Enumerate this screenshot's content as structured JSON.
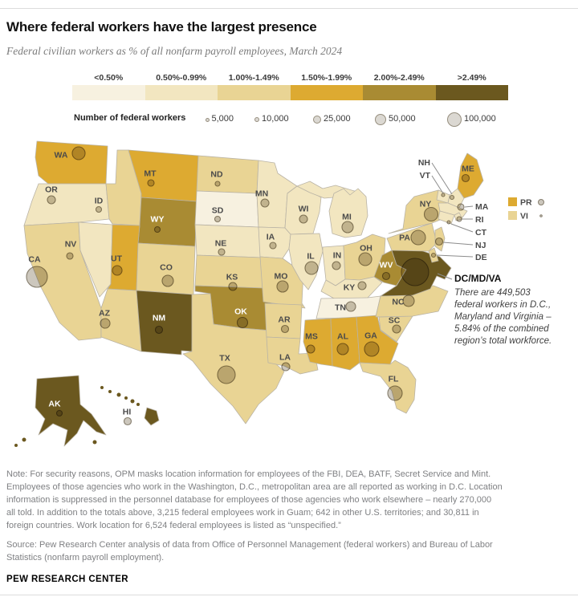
{
  "header": {
    "title": "Where federal workers have the largest presence",
    "subtitle": "Federal civilian workers as % of all nonfarm payroll employees, March 2024"
  },
  "legend": {
    "bins": [
      {
        "label": "<0.50%",
        "color": "#f7f1e0"
      },
      {
        "label": "0.50%-0.99%",
        "color": "#f2e6c0"
      },
      {
        "label": "1.00%-1.49%",
        "color": "#e9d494"
      },
      {
        "label": "1.50%-1.99%",
        "color": "#ddaa31"
      },
      {
        "label": "2.00%-2.49%",
        "color": "#a98b33"
      },
      {
        "label": ">2.49%",
        "color": "#6b581f"
      }
    ],
    "size_title": "Number of federal workers",
    "sizes": [
      "5,000",
      "10,000",
      "25,000",
      "50,000",
      "100,000"
    ]
  },
  "chart_data": {
    "type": "choropleth-bubble-map",
    "title": "Where federal workers have the largest presence",
    "subtitle": "Federal civilian workers as % of all nonfarm payroll employees, March 2024",
    "bin_labels": [
      "<0.50%",
      "0.50%-0.99%",
      "1.00%-1.49%",
      "1.50%-1.99%",
      "2.00%-2.49%",
      ">2.49%"
    ],
    "bubble_legend_values": [
      "5,000",
      "10,000",
      "25,000",
      "50,000",
      "100,000"
    ],
    "states": [
      {
        "key": "WA",
        "bin": 3
      },
      {
        "key": "OR",
        "bin": 1
      },
      {
        "key": "CA",
        "bin": 2
      },
      {
        "key": "NV",
        "bin": 1
      },
      {
        "key": "ID",
        "bin": 2
      },
      {
        "key": "MT",
        "bin": 3
      },
      {
        "key": "WY",
        "bin": 4
      },
      {
        "key": "UT",
        "bin": 3
      },
      {
        "key": "CO",
        "bin": 2
      },
      {
        "key": "AZ",
        "bin": 2
      },
      {
        "key": "NM",
        "bin": 5
      },
      {
        "key": "ND",
        "bin": 2
      },
      {
        "key": "SD",
        "bin": 0
      },
      {
        "key": "NE",
        "bin": 1
      },
      {
        "key": "KS",
        "bin": 2
      },
      {
        "key": "OK",
        "bin": 4
      },
      {
        "key": "TX",
        "bin": 2
      },
      {
        "key": "MN",
        "bin": 1
      },
      {
        "key": "IA",
        "bin": 1
      },
      {
        "key": "MO",
        "bin": 2
      },
      {
        "key": "AR",
        "bin": 2
      },
      {
        "key": "LA",
        "bin": 2
      },
      {
        "key": "WI",
        "bin": 1
      },
      {
        "key": "IL",
        "bin": 1
      },
      {
        "key": "MIU",
        "bin": 1
      },
      {
        "key": "MI",
        "bin": 1
      },
      {
        "key": "IN",
        "bin": 1
      },
      {
        "key": "OH",
        "bin": 2
      },
      {
        "key": "KY",
        "bin": 1
      },
      {
        "key": "TN",
        "bin": 0
      },
      {
        "key": "MS",
        "bin": 3
      },
      {
        "key": "AL",
        "bin": 3
      },
      {
        "key": "GA",
        "bin": 3
      },
      {
        "key": "SC",
        "bin": 2
      },
      {
        "key": "NC",
        "bin": 2
      },
      {
        "key": "FL",
        "bin": 2
      },
      {
        "key": "WV",
        "bin": 4
      },
      {
        "key": "DCMDVA",
        "bin": 5
      },
      {
        "key": "PA",
        "bin": 2
      },
      {
        "key": "NY",
        "bin": 2
      },
      {
        "key": "NJ",
        "bin": 2
      },
      {
        "key": "DE",
        "bin": 2
      },
      {
        "key": "ME",
        "bin": 3
      },
      {
        "key": "NH",
        "bin": 1
      },
      {
        "key": "VT",
        "bin": 1
      },
      {
        "key": "MA",
        "bin": 1
      },
      {
        "key": "CT",
        "bin": 1
      },
      {
        "key": "RI",
        "bin": 1
      },
      {
        "key": "AK",
        "bin": 5
      },
      {
        "key": "HI",
        "bin": 5
      }
    ],
    "territories": [
      {
        "key": "PR",
        "label": "PR",
        "bin": 3
      },
      {
        "key": "VI",
        "label": "VI",
        "bin": 2
      }
    ],
    "callouts": [
      {
        "key": "NH",
        "label": "NH"
      },
      {
        "key": "VT",
        "label": "VT"
      },
      {
        "key": "MA",
        "label": "MA"
      },
      {
        "key": "RI",
        "label": "RI"
      },
      {
        "key": "CT",
        "label": "CT"
      },
      {
        "key": "NJ",
        "label": "NJ"
      },
      {
        "key": "DE",
        "label": "DE"
      },
      {
        "key": "DCMDVA",
        "label": "DC/MD/VA",
        "bold": true
      }
    ]
  },
  "annotation": {
    "title": "DC/MD/VA",
    "lines": [
      "There are 449,503",
      "federal workers in D.C.,",
      "Maryland and Virginia –",
      "5.84% of the combined",
      "region’s total workforce."
    ]
  },
  "notes": {
    "lines": [
      "Note: For security reasons, OPM masks location information for employees of the FBI, DEA, BATF, Secret Service and Mint.",
      "Employees of those agencies who work in the Washington, D.C., metropolitan area are all reported as working in D.C. Location",
      "information is suppressed in the personnel database for employees of those agencies who work elsewhere – nearly 270,000",
      "all told. In addition to the totals above, 3,215 federal employees work in Guam; 642 in other U.S. territories; and 30,811 in",
      "foreign countries. Work location for 6,524 federal employees is listed as “unspecified.”"
    ]
  },
  "source": {
    "lines": [
      "Source: Pew Research Center analysis of data from Office of Personnel Management (federal workers) and Bureau of Labor",
      "Statistics (nonfarm payroll employment)."
    ]
  },
  "footer": {
    "wordmark": "PEW RESEARCH CENTER"
  },
  "colors": {
    "bubble_fill": "#ccc7bd",
    "bubble_stroke": "#867e6e",
    "state_border": "#b9b3a5",
    "label_dark": "#4a4a4a",
    "label_light": "#ffffff",
    "leader_line": "#8c8c8c"
  }
}
